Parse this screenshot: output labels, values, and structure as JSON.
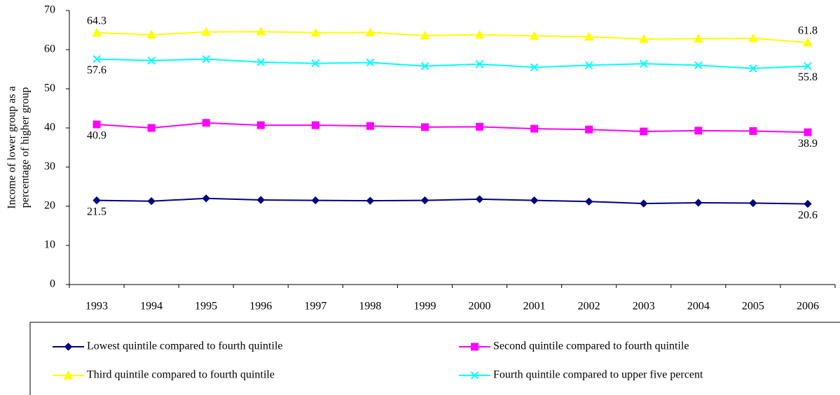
{
  "chart_data": {
    "type": "line",
    "ylabel": [
      "Income of lower group as a",
      "percentage of higher group"
    ],
    "categories": [
      "1993",
      "1994",
      "1995",
      "1996",
      "1997",
      "1998",
      "1999",
      "2000",
      "2001",
      "2002",
      "2003",
      "2004",
      "2005",
      "2006"
    ],
    "series": [
      {
        "name": "Lowest quintile compared to fourth quintile",
        "color": "#000080",
        "marker": "diamond",
        "values": [
          21.5,
          21.3,
          22.0,
          21.6,
          21.5,
          21.4,
          21.5,
          21.8,
          21.5,
          21.2,
          20.7,
          20.9,
          20.8,
          20.6
        ]
      },
      {
        "name": "Second quintile compared to fourth quintile",
        "color": "#ff00ff",
        "marker": "square",
        "values": [
          40.9,
          40.0,
          41.3,
          40.7,
          40.7,
          40.5,
          40.2,
          40.3,
          39.8,
          39.6,
          39.1,
          39.3,
          39.2,
          38.9
        ]
      },
      {
        "name": "Third quintile compared to fourth quintile",
        "color": "#ffff00",
        "marker": "triangle",
        "values": [
          64.3,
          63.8,
          64.5,
          64.6,
          64.3,
          64.4,
          63.6,
          63.8,
          63.5,
          63.3,
          62.7,
          62.8,
          62.9,
          61.8
        ]
      },
      {
        "name": "Fourth quintile compared to upper five percent",
        "color": "#00ffff",
        "marker": "x",
        "values": [
          57.6,
          57.2,
          57.6,
          56.8,
          56.5,
          56.7,
          55.8,
          56.3,
          55.5,
          56.0,
          56.4,
          56.0,
          55.2,
          55.8
        ]
      }
    ],
    "ylim": [
      0,
      70
    ],
    "yticks": [
      0,
      10,
      20,
      30,
      40,
      50,
      60,
      70
    ],
    "grid": false
  }
}
